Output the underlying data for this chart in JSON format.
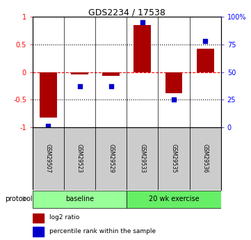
{
  "title": "GDS2234 / 17538",
  "samples": [
    "GSM29507",
    "GSM29523",
    "GSM29529",
    "GSM29533",
    "GSM29535",
    "GSM29536"
  ],
  "log2_ratios": [
    -0.82,
    -0.05,
    -0.07,
    0.85,
    -0.38,
    0.42
  ],
  "percentile_ranks": [
    1,
    37,
    37,
    95,
    25,
    78
  ],
  "groups": [
    {
      "label": "baseline",
      "color": "#99ff99",
      "start": 0,
      "end": 2
    },
    {
      "label": "20 wk exercise",
      "color": "#66ee66",
      "start": 3,
      "end": 5
    }
  ],
  "bar_color": "#aa0000",
  "dot_color": "#0000cc",
  "bar_width": 0.55,
  "ylim_left": [
    -1.0,
    1.0
  ],
  "ylim_right": [
    0,
    100
  ],
  "yticks_left": [
    -1.0,
    -0.5,
    0.0,
    0.5,
    1.0
  ],
  "yticks_right": [
    0,
    25,
    50,
    75,
    100
  ],
  "ytick_labels_left": [
    "-1",
    "-0.5",
    "0",
    "0.5",
    "1"
  ],
  "ytick_labels_right": [
    "0",
    "25",
    "50",
    "75",
    "100%"
  ],
  "dotted_lines": [
    -0.5,
    0.5
  ],
  "legend_items": [
    {
      "label": "log2 ratio",
      "color": "#aa0000",
      "marker": "s"
    },
    {
      "label": "percentile rank within the sample",
      "color": "#0000cc",
      "marker": "s"
    }
  ],
  "protocol_label": "protocol",
  "sample_box_color": "#cccccc"
}
